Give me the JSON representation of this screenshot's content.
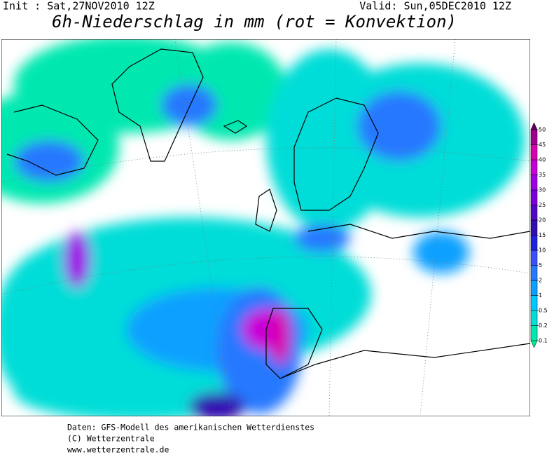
{
  "header": {
    "init": "Init : Sat,27NOV2010 12Z",
    "valid": "Valid: Sun,05DEC2010 12Z",
    "title": "6h-Niederschlag in mm (rot = Konvektion)"
  },
  "legend": {
    "levels": [
      0.1,
      0.2,
      0.5,
      1,
      2,
      5,
      10,
      15,
      20,
      25,
      30,
      35,
      40,
      45,
      50
    ],
    "colors": [
      "#00f090",
      "#00e8b0",
      "#00ddd8",
      "#00c8ff",
      "#0aa0ff",
      "#2878ff",
      "#3a50ff",
      "#2020e0",
      "#3010b0",
      "#5008c8",
      "#7a00dd",
      "#a000e8",
      "#c800d8",
      "#d800b0",
      "#a00090",
      "#600060"
    ]
  },
  "footer": {
    "lines": [
      "Daten: GFS-Modell des amerikanischen Wetterdienstes",
      "(C) Wetterzentrale",
      "www.wetterzentrale.de"
    ]
  }
}
